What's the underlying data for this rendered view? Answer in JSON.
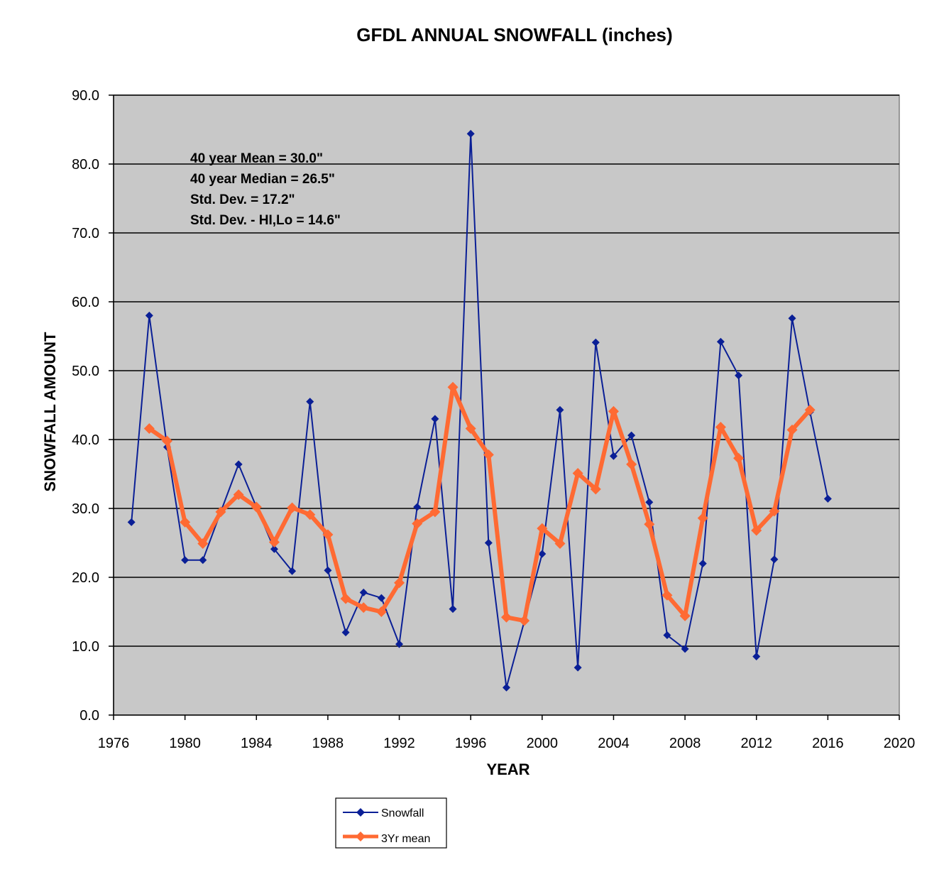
{
  "chart_data": {
    "type": "line",
    "title": "GFDL ANNUAL SNOWFALL (inches)",
    "xlabel": "YEAR",
    "ylabel": "SNOWFALL AMOUNT",
    "xlim": [
      1976,
      2020
    ],
    "ylim": [
      0,
      90
    ],
    "x_ticks": [
      1976,
      1980,
      1984,
      1988,
      1992,
      1996,
      2000,
      2004,
      2008,
      2012,
      2016,
      2020
    ],
    "y_ticks": [
      "0.0",
      "10.0",
      "20.0",
      "30.0",
      "40.0",
      "50.0",
      "60.0",
      "70.0",
      "80.0",
      "90.0"
    ],
    "grid": "horizontal",
    "legend_position": "bottom-center",
    "annotations": [
      "40 year Mean = 30.0\"",
      "40 year Median = 26.5\"",
      "Std. Dev. = 17.2\"",
      "Std. Dev. - HI,Lo = 14.6\""
    ],
    "series": [
      {
        "name": "Snowfall",
        "color": "#0a1f96",
        "x": [
          1977,
          1978,
          1979,
          1980,
          1981,
          1982,
          1983,
          1984,
          1985,
          1986,
          1987,
          1988,
          1989,
          1990,
          1991,
          1992,
          1993,
          1994,
          1995,
          1996,
          1997,
          1998,
          1999,
          2000,
          2001,
          2002,
          2003,
          2004,
          2005,
          2006,
          2007,
          2008,
          2009,
          2010,
          2011,
          2012,
          2013,
          2014,
          2015,
          2016
        ],
        "values": [
          28.0,
          58.0,
          38.9,
          22.5,
          22.5,
          29.5,
          36.4,
          30.2,
          24.1,
          20.9,
          45.5,
          21.0,
          12.0,
          17.8,
          17.0,
          10.3,
          30.2,
          43.0,
          15.4,
          84.4,
          25.0,
          4.0,
          13.6,
          23.4,
          44.3,
          6.9,
          54.1,
          37.6,
          40.6,
          30.9,
          11.6,
          9.6,
          22.0,
          54.2,
          49.3,
          8.5,
          22.6,
          57.6,
          44.0,
          31.4
        ]
      },
      {
        "name": "3Yr mean",
        "color": "#ff6a33",
        "x": [
          1978,
          1979,
          1980,
          1981,
          1982,
          1983,
          1984,
          1985,
          1986,
          1987,
          1988,
          1989,
          1990,
          1991,
          1992,
          1993,
          1994,
          1995,
          1996,
          1997,
          1998,
          1999,
          2000,
          2001,
          2002,
          2003,
          2004,
          2005,
          2006,
          2007,
          2008,
          2009,
          2010,
          2011,
          2012,
          2013,
          2014,
          2015
        ],
        "values": [
          41.6,
          39.8,
          28.0,
          24.9,
          29.5,
          32.0,
          30.2,
          25.1,
          30.1,
          29.1,
          26.2,
          16.9,
          15.6,
          15.0,
          19.2,
          27.8,
          29.5,
          47.6,
          41.6,
          37.8,
          14.2,
          13.7,
          27.1,
          24.9,
          35.1,
          32.8,
          44.1,
          36.4,
          27.7,
          17.4,
          14.4,
          28.6,
          41.8,
          37.3,
          26.8,
          29.6,
          41.4,
          44.3
        ]
      }
    ]
  }
}
